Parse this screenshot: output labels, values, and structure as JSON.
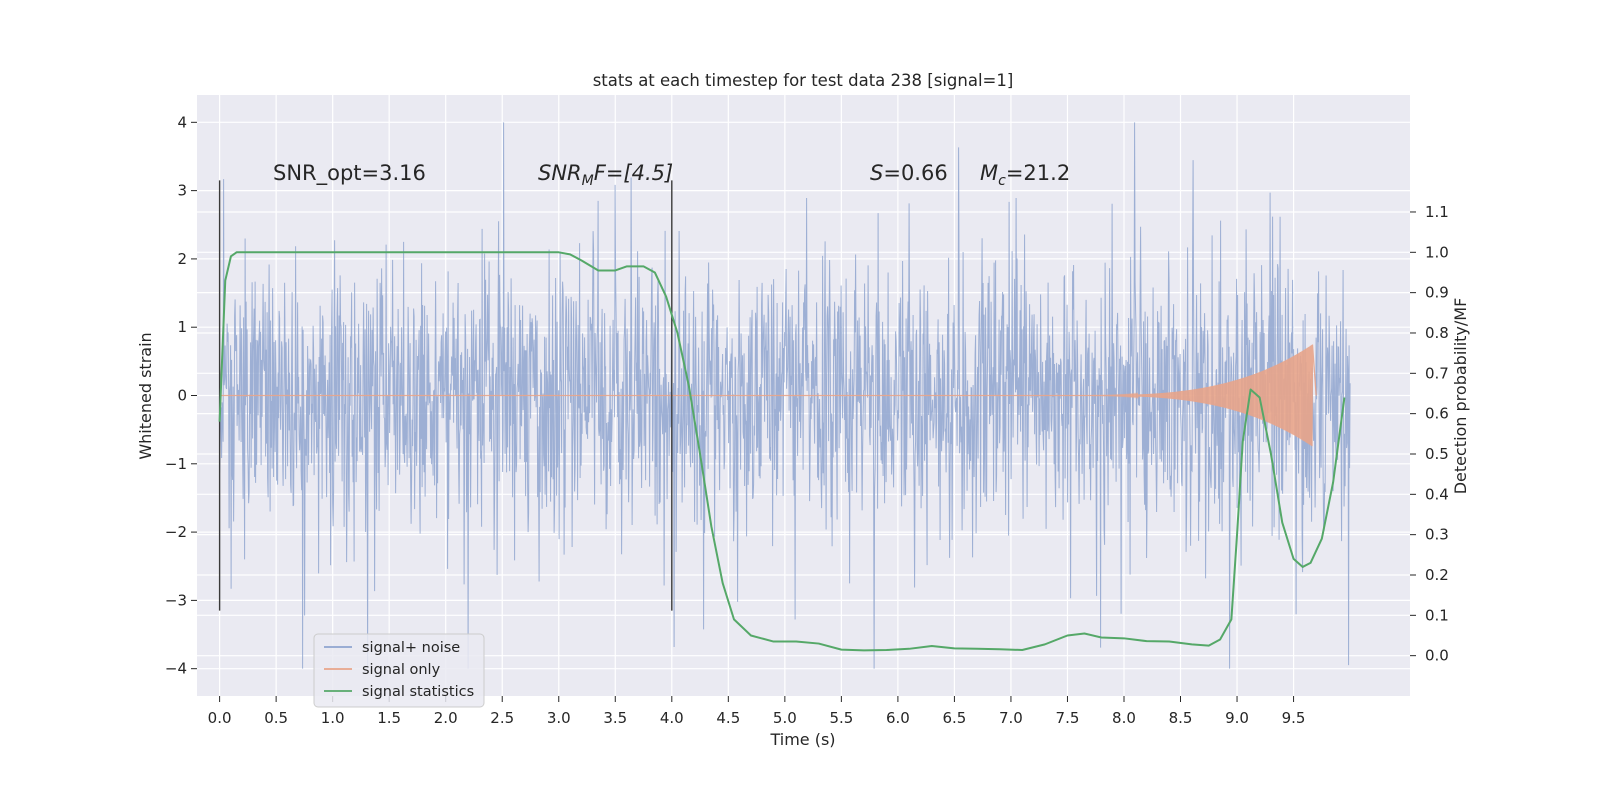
{
  "chart_data": {
    "type": "line",
    "title": "stats at each timestep for test data 238 [signal=1]",
    "xlabel": "Time (s)",
    "ylabel": "Whitened strain",
    "ylabel_right": "Detection probability/MF",
    "xlim": [
      -0.2,
      10.53
    ],
    "ylim": [
      -4.4,
      4.4
    ],
    "ylim_right": [
      -0.1,
      1.39
    ],
    "x_ticks": [
      "0.0",
      "0.5",
      "1.0",
      "1.5",
      "2.0",
      "2.5",
      "3.0",
      "3.5",
      "4.0",
      "4.5",
      "5.0",
      "5.5",
      "6.0",
      "6.5",
      "7.0",
      "7.5",
      "8.0",
      "8.5",
      "9.0",
      "9.5"
    ],
    "y_ticks": [
      "4",
      "3",
      "2",
      "1",
      "0",
      "−1",
      "−2",
      "−3",
      "−4"
    ],
    "y_ticks_right": [
      "1.1",
      "1.0",
      "0.9",
      "0.8",
      "0.7",
      "0.6",
      "0.5",
      "0.4",
      "0.3",
      "0.2",
      "0.1",
      "0.0"
    ],
    "annotations": {
      "snr_opt": "SNR_opt=3.16",
      "snr_mf_a": "SNR",
      "snr_mf_sub": "M",
      "snr_mf_b": "F=[4.5]",
      "s_a": "S",
      "s_b": "=0.66",
      "mc_a": "M",
      "mc_sub": "c",
      "mc_b": "=21.2"
    },
    "vlines": [
      0.0,
      4.0
    ],
    "noise_series": {
      "name": "signal+ noise",
      "color": "#8fa4cf",
      "t_start": 0.0,
      "t_end": 10.0,
      "typical_amplitude": 1.3,
      "peak_amplitude": 4.0
    },
    "signal_series": {
      "name": "signal only",
      "color": "#e8a48a",
      "chirp_start": 7.5,
      "chirp_peak_time": 9.67,
      "chirp_peak_amplitude": 0.75
    },
    "stats_series": {
      "name": "signal statistics",
      "color": "#55a868",
      "x": [
        0.0,
        0.05,
        0.1,
        0.15,
        0.2,
        0.4,
        1.0,
        2.0,
        3.0,
        3.1,
        3.2,
        3.35,
        3.5,
        3.6,
        3.75,
        3.85,
        3.95,
        4.05,
        4.15,
        4.25,
        4.35,
        4.45,
        4.55,
        4.7,
        4.9,
        5.1,
        5.3,
        5.5,
        5.7,
        5.9,
        6.1,
        6.3,
        6.5,
        6.7,
        6.9,
        7.1,
        7.3,
        7.5,
        7.65,
        7.8,
        8.0,
        8.2,
        8.4,
        8.6,
        8.75,
        8.85,
        8.95,
        9.0,
        9.05,
        9.12,
        9.2,
        9.3,
        9.4,
        9.5,
        9.58,
        9.65,
        9.75,
        9.85,
        9.95
      ],
      "y": [
        0.58,
        0.93,
        0.99,
        1.0,
        1.0,
        1.0,
        1.0,
        1.0,
        1.0,
        0.995,
        0.98,
        0.955,
        0.955,
        0.965,
        0.965,
        0.95,
        0.89,
        0.8,
        0.67,
        0.5,
        0.32,
        0.18,
        0.09,
        0.05,
        0.035,
        0.035,
        0.03,
        0.015,
        0.013,
        0.014,
        0.017,
        0.024,
        0.018,
        0.017,
        0.016,
        0.014,
        0.028,
        0.05,
        0.055,
        0.045,
        0.043,
        0.036,
        0.035,
        0.028,
        0.025,
        0.04,
        0.09,
        0.3,
        0.53,
        0.66,
        0.64,
        0.5,
        0.33,
        0.24,
        0.22,
        0.23,
        0.29,
        0.43,
        0.64
      ]
    },
    "legend_location": "lower-left",
    "grid": true
  }
}
